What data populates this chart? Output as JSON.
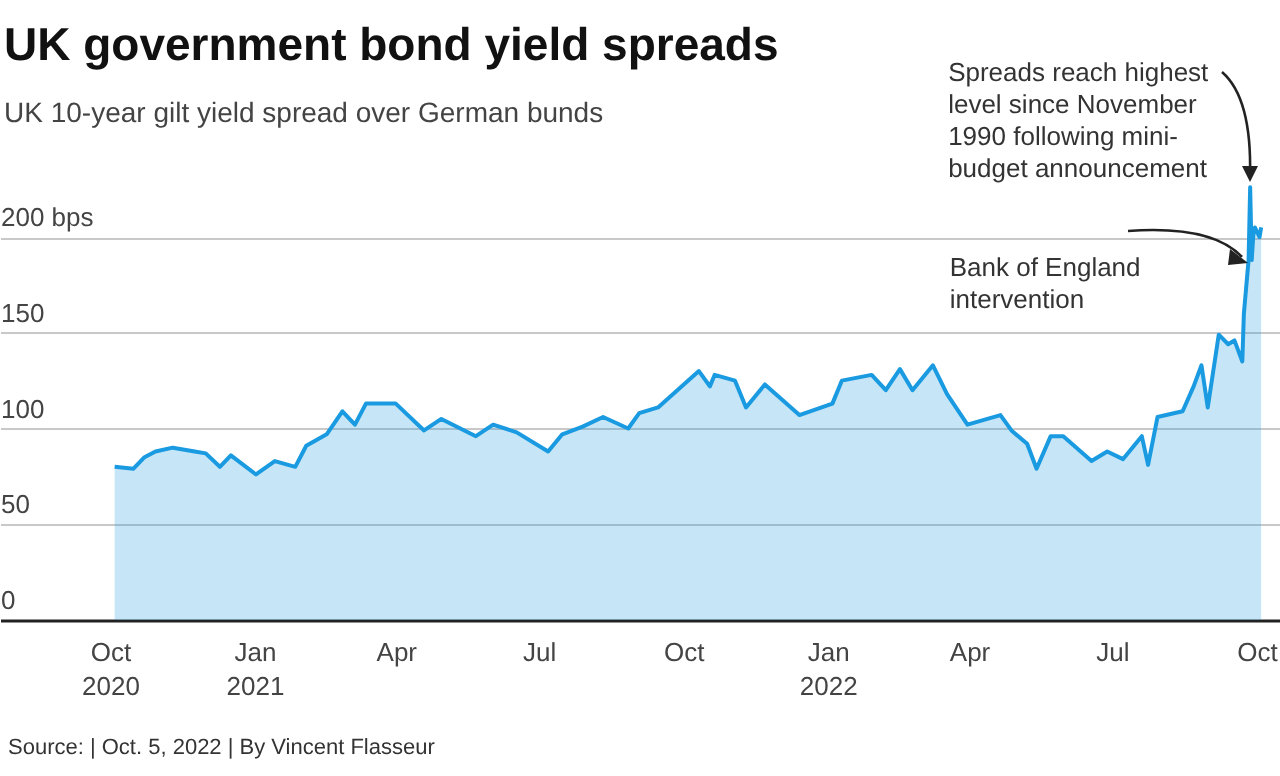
{
  "chart_data": {
    "type": "area",
    "title": "UK government bond yield spreads",
    "subtitle": "UK 10-year gilt yield spread over German bunds",
    "x": [
      "2020-10-04",
      "2020-10-16",
      "2020-10-23",
      "2020-10-30",
      "2020-11-10",
      "2020-11-24",
      "2020-12-01",
      "2020-12-10",
      "2020-12-17",
      "2021-01-02",
      "2021-01-14",
      "2021-01-27",
      "2021-02-03",
      "2021-02-16",
      "2021-02-26",
      "2021-03-06",
      "2021-03-13",
      "2021-04-01",
      "2021-04-19",
      "2021-04-30",
      "2021-05-22",
      "2021-06-02",
      "2021-06-17",
      "2021-07-07",
      "2021-07-16",
      "2021-07-29",
      "2021-08-11",
      "2021-08-27",
      "2021-09-03",
      "2021-09-15",
      "2021-10-11",
      "2021-10-18",
      "2021-10-21",
      "2021-11-03",
      "2021-11-10",
      "2021-11-22",
      "2021-12-14",
      "2022-01-04",
      "2022-01-10",
      "2022-01-29",
      "2022-02-07",
      "2022-02-16",
      "2022-02-24",
      "2022-03-09",
      "2022-03-18",
      "2022-03-31",
      "2022-04-21",
      "2022-04-28",
      "2022-05-08",
      "2022-05-14",
      "2022-05-23",
      "2022-05-31",
      "2022-06-18",
      "2022-06-28",
      "2022-07-08",
      "2022-07-20",
      "2022-07-24",
      "2022-07-30",
      "2022-08-15",
      "2022-08-22",
      "2022-08-27",
      "2022-08-31",
      "2022-09-07",
      "2022-09-13",
      "2022-09-17",
      "2022-09-22",
      "2022-09-23",
      "2022-09-26",
      "2022-09-27",
      "2022-09-28",
      "2022-09-29",
      "2022-09-30",
      "2022-10-03",
      "2022-10-04"
    ],
    "series": [
      {
        "color": "#1a9ae0",
        "values": [
          80,
          79,
          85,
          88,
          90,
          88,
          87,
          80,
          86,
          76,
          83,
          80,
          91,
          97,
          109,
          102,
          113,
          113,
          99,
          105,
          96,
          102,
          98,
          88,
          97,
          101,
          106,
          100,
          108,
          111,
          130,
          122,
          128,
          125,
          111,
          123,
          107,
          113,
          125,
          128,
          120,
          131,
          120,
          133,
          118,
          102,
          107,
          99,
          92,
          79,
          96,
          96,
          83,
          88,
          84,
          96,
          81,
          106,
          109,
          122,
          133,
          111,
          149,
          144,
          146,
          135,
          160,
          188,
          226,
          188,
          201,
          205,
          200,
          205
        ]
      }
    ],
    "xlim": [
      "2020-07-23",
      "2022-10-16"
    ],
    "xticks": [
      {
        "value": "2020-10-01",
        "label": "Oct 2020"
      },
      {
        "value": "2021-01-01",
        "label": "Jan 2021"
      },
      {
        "value": "2021-04-01",
        "label": "Apr"
      },
      {
        "value": "2021-07-01",
        "label": "Jul"
      },
      {
        "value": "2021-10-01",
        "label": "Oct"
      },
      {
        "value": "2022-01-01",
        "label": "Jan 2022"
      },
      {
        "value": "2022-04-01",
        "label": "Apr"
      },
      {
        "value": "2022-07-01",
        "label": "Jul"
      },
      {
        "value": "2022-10-01",
        "label": "Oct"
      }
    ],
    "ylim": [
      0,
      235
    ],
    "yticks": [
      0,
      50,
      100,
      150,
      {
        "value": 200,
        "label": "200 bps"
      }
    ],
    "grid": "y",
    "annotations": [
      {
        "text": "Spreads reach highest level since November 1990 following mini-budget announcement",
        "x": "2022-09-27",
        "y": 226
      },
      {
        "text": "Bank of England intervention",
        "x": "2022-09-28",
        "y": 188
      },
      "Source: | Oct. 5, 2022 | By Vincent Flasseur"
    ]
  }
}
